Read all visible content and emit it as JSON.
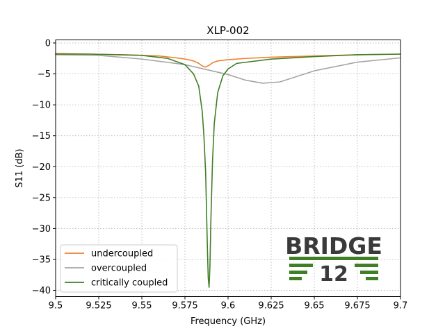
{
  "chart_data": {
    "type": "line",
    "title": "XLP-002",
    "xlabel": "Frequency (GHz)",
    "ylabel": "S11 (dB)",
    "xlim": [
      9.5,
      9.7
    ],
    "ylim": [
      -41,
      0.5
    ],
    "xticks": [
      9.5,
      9.525,
      9.55,
      9.575,
      9.6,
      9.625,
      9.65,
      9.675,
      9.7
    ],
    "xtick_labels": [
      "9.5",
      "9.525",
      "9.55",
      "9.575",
      "9.6",
      "9.625",
      "9.65",
      "9.675",
      "9.7"
    ],
    "yticks": [
      0,
      -5,
      -10,
      -15,
      -20,
      -25,
      -30,
      -35,
      -40
    ],
    "ytick_labels": [
      "0",
      "−5",
      "−10",
      "−15",
      "−20",
      "−25",
      "−30",
      "−35",
      "−40"
    ],
    "grid": true,
    "legend_position": "lower-left",
    "series": [
      {
        "name": "undercoupled",
        "color": "#f07f2f",
        "x": [
          9.5,
          9.52,
          9.54,
          9.56,
          9.57,
          9.575,
          9.58,
          9.583,
          9.585,
          9.587,
          9.589,
          9.591,
          9.594,
          9.6,
          9.61,
          9.625,
          9.65,
          9.675,
          9.7
        ],
        "y": [
          -1.7,
          -1.8,
          -1.9,
          -2.1,
          -2.4,
          -2.6,
          -2.9,
          -3.3,
          -3.7,
          -3.9,
          -3.6,
          -3.2,
          -2.9,
          -2.7,
          -2.5,
          -2.3,
          -2.1,
          -1.9,
          -1.8
        ]
      },
      {
        "name": "overcoupled",
        "color": "#a5a5a5",
        "x": [
          9.5,
          9.525,
          9.55,
          9.575,
          9.6,
          9.61,
          9.62,
          9.63,
          9.65,
          9.675,
          9.7
        ],
        "y": [
          -1.9,
          -2.0,
          -2.6,
          -3.5,
          -5.1,
          -6.0,
          -6.5,
          -6.3,
          -4.5,
          -3.1,
          -2.4
        ]
      },
      {
        "name": "critically coupled",
        "color": "#3f7f25",
        "x": [
          9.5,
          9.52,
          9.55,
          9.565,
          9.575,
          9.58,
          9.583,
          9.585,
          9.586,
          9.587,
          9.5875,
          9.588,
          9.5885,
          9.589,
          9.5895,
          9.59,
          9.591,
          9.592,
          9.594,
          9.597,
          9.6,
          9.605,
          9.625,
          9.65,
          9.675,
          9.7
        ],
        "y": [
          -1.8,
          -1.8,
          -2.0,
          -2.5,
          -3.5,
          -5.0,
          -7.0,
          -11.0,
          -15.0,
          -21.0,
          -27.0,
          -33.0,
          -38.0,
          -39.5,
          -36.0,
          -29.0,
          -19.0,
          -13.0,
          -8.0,
          -5.3,
          -4.2,
          -3.3,
          -2.6,
          -2.2,
          -1.9,
          -1.8
        ]
      }
    ]
  },
  "logo": {
    "word": "BRIDGE",
    "number": "12",
    "color": "#3f7f25"
  }
}
